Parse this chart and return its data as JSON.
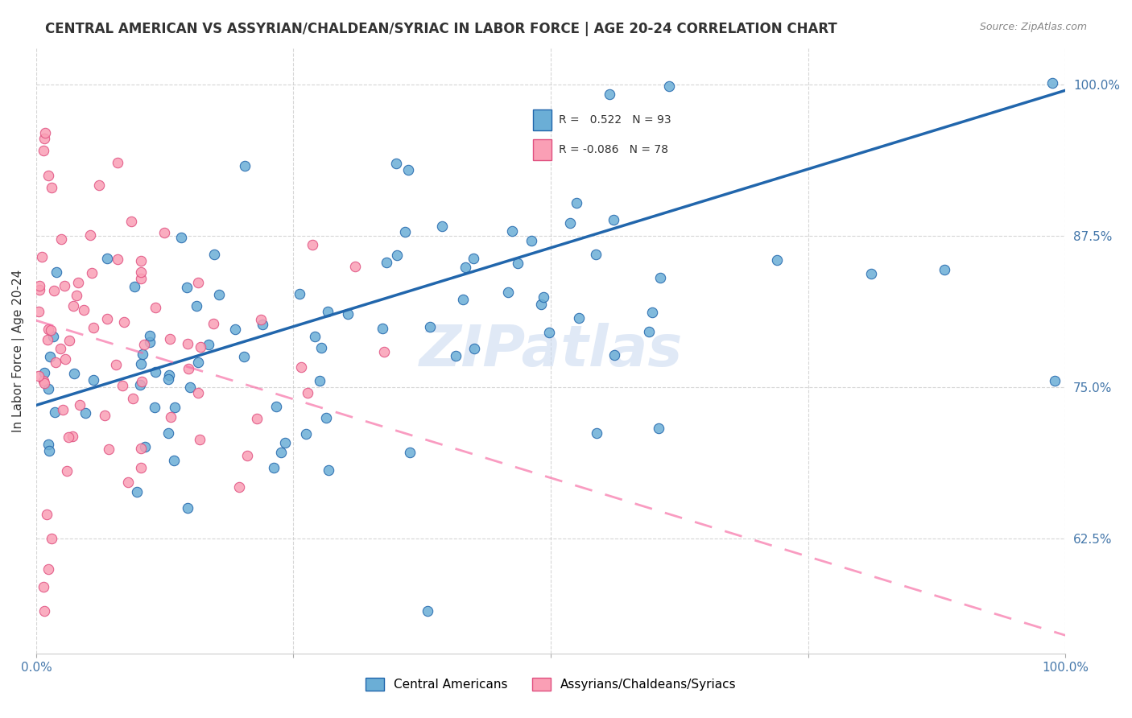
{
  "title": "CENTRAL AMERICAN VS ASSYRIAN/CHALDEAN/SYRIAC IN LABOR FORCE | AGE 20-24 CORRELATION CHART",
  "source": "Source: ZipAtlas.com",
  "ylabel": "In Labor Force | Age 20-24",
  "ytick_labels": [
    "100.0%",
    "87.5%",
    "75.0%",
    "62.5%"
  ],
  "ytick_values": [
    1.0,
    0.875,
    0.75,
    0.625
  ],
  "xlim": [
    0.0,
    1.0
  ],
  "ylim": [
    0.53,
    1.03
  ],
  "r_blue": 0.522,
  "n_blue": 93,
  "r_pink": -0.086,
  "n_pink": 78,
  "legend_label_blue": "Central Americans",
  "legend_label_pink": "Assyrians/Chaldeans/Syriacs",
  "color_blue": "#6baed6",
  "color_pink": "#fa9fb5",
  "color_blue_line": "#2166ac",
  "color_pink_line": "#f768a1",
  "watermark": "ZIPatlas",
  "blue_line_x": [
    0.0,
    1.0
  ],
  "blue_line_y": [
    0.735,
    0.995
  ],
  "pink_line_x": [
    0.0,
    1.0
  ],
  "pink_line_y": [
    0.805,
    0.545
  ]
}
